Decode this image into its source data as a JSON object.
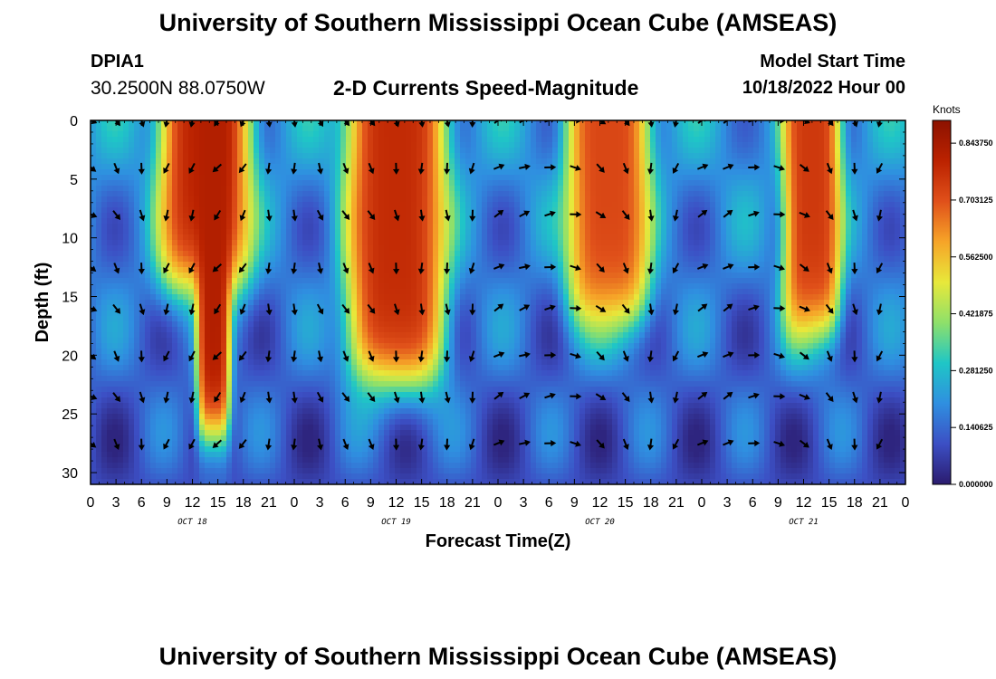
{
  "page": {
    "title": "University of Southern Mississippi Ocean Cube (AMSEAS)",
    "station": "DPIA1",
    "coords": "30.2500N  88.0750W",
    "subtitle": "2-D Currents Speed-Magnitude",
    "start_label": "Model Start Time",
    "start_value": "10/18/2022 Hour 00",
    "bottom_title": "University of Southern Mississippi Ocean Cube (AMSEAS)"
  },
  "chart_data": {
    "type": "heatmap",
    "title": "2-D Currents Speed-Magnitude",
    "xlabel": "Forecast Time(Z)",
    "ylabel": "Depth (ft)",
    "x_range_hours": [
      0,
      96
    ],
    "y_range_ft": [
      0,
      31
    ],
    "y_inverted": true,
    "x_tick_labels": [
      "0",
      "3",
      "6",
      "9",
      "12",
      "15",
      "18",
      "21",
      "0",
      "3",
      "6",
      "9",
      "12",
      "15",
      "18",
      "21",
      "0",
      "3",
      "6",
      "9",
      "12",
      "15",
      "18",
      "21",
      "0",
      "3",
      "6",
      "9",
      "12",
      "15",
      "18",
      "21",
      "0"
    ],
    "y_tick_labels": [
      "0",
      "5",
      "10",
      "15",
      "20",
      "25",
      "30"
    ],
    "y_tick_values": [
      0,
      5,
      10,
      15,
      20,
      25,
      30
    ],
    "date_labels": [
      {
        "label": "OCT 18",
        "hour": 12
      },
      {
        "label": "OCT 19",
        "hour": 36
      },
      {
        "label": "OCT 20",
        "hour": 60
      },
      {
        "label": "OCT 21",
        "hour": 84
      }
    ],
    "colorbar": {
      "unit": "Knots",
      "range": [
        0,
        0.9
      ],
      "labels": [
        "0.843750",
        "0.703125",
        "0.562500",
        "0.421875",
        "0.281250",
        "0.140625",
        "0.000000"
      ],
      "label_values": [
        0.84375,
        0.703125,
        0.5625,
        0.421875,
        0.28125,
        0.140625,
        0.0
      ],
      "colors": [
        "#2b1b6e",
        "#3c4fc4",
        "#2f8fe0",
        "#1fc6c6",
        "#8ee06a",
        "#e8e83a",
        "#f6a428",
        "#e0501a",
        "#bb2200",
        "#8c1200"
      ]
    },
    "speed_events": [
      {
        "center_hour": 13.5,
        "half_width_hours": 5.5,
        "max_speed": 0.8,
        "penetration_ft": 14
      },
      {
        "center_hour": 14.5,
        "half_width_hours": 2.0,
        "max_speed": 0.82,
        "penetration_ft": 27
      },
      {
        "center_hour": 36.0,
        "half_width_hours": 6.0,
        "max_speed": 0.78,
        "penetration_ft": 22
      },
      {
        "center_hour": 61.0,
        "half_width_hours": 5.0,
        "max_speed": 0.72,
        "penetration_ft": 17
      },
      {
        "center_hour": 85.0,
        "half_width_hours": 3.5,
        "max_speed": 0.75,
        "penetration_ft": 18
      }
    ],
    "background_speed": 0.22,
    "vector_times": [
      0,
      3,
      6,
      9,
      12,
      15,
      18,
      21,
      24,
      27,
      30,
      33,
      36,
      39,
      42,
      45,
      48,
      51,
      54,
      57,
      60,
      63,
      66,
      69,
      72,
      75,
      78,
      81,
      84,
      87,
      90,
      93
    ],
    "vector_depths_ft": [
      0,
      4,
      8,
      12.5,
      16,
      20,
      23.5,
      27.5
    ],
    "vector_direction_note": "degrees clockwise from north; flow toward",
    "vector_directions_by_time": [
      120,
      150,
      170,
      200,
      200,
      220,
      210,
      180,
      180,
      160,
      150,
      150,
      170,
      180,
      175,
      190,
      60,
      70,
      80,
      100,
      130,
      150,
      180,
      200,
      60,
      60,
      80,
      100,
      120,
      150,
      170,
      200
    ]
  }
}
